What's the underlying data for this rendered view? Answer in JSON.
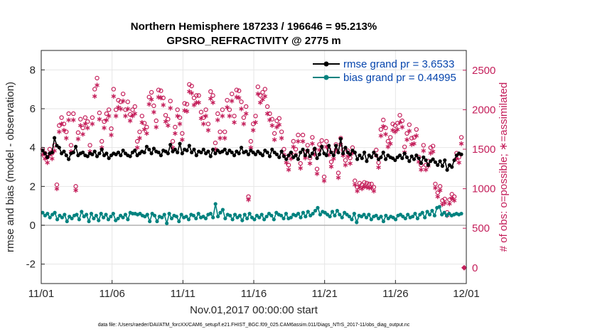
{
  "chart_data": {
    "type": "line",
    "title": "Northern Hemisphere 187233 / 196646 = 95.213%",
    "subtitle": "GPSRO_REFRACTIVITY @ 2775 m",
    "xlabel": "Nov.01,2017 00:00:00 start",
    "ylabel_left": "rmse and bias (model - observation)",
    "ylabel_right": "# of obs: o=possible; ∗=assimilated",
    "footnote": "data file: /Users/raeder/DAI/ATM_forcXX/CAM6_setup/f.e21.FHIST_BGC.f09_025.CAM6assim.011/Diags_NTrS_2017-11/obs_diag_output.nc",
    "x_ticks": [
      "11/01",
      "11/06",
      "11/11",
      "11/16",
      "11/21",
      "11/26",
      "12/01"
    ],
    "x_tick_days": [
      0,
      5,
      10,
      15,
      20,
      25,
      30
    ],
    "xlim": [
      0,
      30
    ],
    "ylim_left": [
      -3,
      9
    ],
    "y_ticks_left": [
      "-2",
      "0",
      "2",
      "4",
      "6",
      "8"
    ],
    "y_tick_values_left": [
      -2,
      0,
      2,
      4,
      6,
      8
    ],
    "ylim_right": [
      -200,
      2750
    ],
    "y_ticks_right": [
      "0",
      "500",
      "1000",
      "1500",
      "2000",
      "2500"
    ],
    "y_tick_values_right": [
      0,
      500,
      1000,
      1500,
      2000,
      2500
    ],
    "grid": true,
    "legend_position": "top-right",
    "series": [
      {
        "name": "rmse grand pr = 3.6533",
        "axis": "left",
        "color": "#000000",
        "values": [
          3.85,
          3.7,
          3.5,
          3.7,
          3.75,
          4.5,
          4.1,
          4.0,
          3.7,
          3.8,
          3.6,
          3.4,
          3.7,
          3.75,
          4.05,
          3.6,
          3.7,
          3.75,
          3.6,
          3.55,
          3.7,
          3.65,
          3.8,
          3.55,
          3.7,
          3.9,
          3.6,
          3.7,
          3.45,
          3.6,
          3.7,
          3.65,
          3.75,
          3.6,
          3.85,
          3.7,
          3.6,
          3.55,
          3.75,
          3.85,
          3.6,
          3.7,
          3.8,
          3.75,
          4.05,
          3.9,
          3.7,
          3.95,
          3.8,
          3.75,
          3.6,
          3.85,
          3.8,
          3.7,
          4.15,
          3.8,
          3.9,
          3.75,
          4.2,
          3.7,
          3.9,
          3.85,
          4.1,
          3.75,
          3.9,
          3.6,
          3.8,
          3.75,
          3.9,
          3.7,
          3.8,
          3.55,
          3.9,
          3.7,
          3.85,
          3.75,
          3.8,
          3.9,
          3.7,
          3.85,
          3.75,
          3.6,
          3.8,
          3.7,
          4.0,
          3.75,
          3.8,
          3.65,
          3.85,
          3.75,
          3.65,
          3.8,
          3.7,
          3.6,
          3.85,
          3.75,
          3.55,
          3.9,
          3.75,
          3.65,
          3.5,
          3.8,
          3.55,
          3.4,
          3.6,
          3.75,
          3.5,
          3.6,
          3.4,
          3.75,
          3.9,
          3.6,
          3.85,
          3.55,
          3.7,
          3.95,
          3.45,
          3.65,
          4.05,
          3.7,
          3.6,
          4.1,
          3.75,
          3.6,
          4.1,
          3.75,
          4.45,
          3.7,
          4.0,
          3.75,
          3.65,
          3.85,
          3.75,
          3.4,
          3.6,
          3.45,
          3.75,
          3.3,
          3.6,
          3.5,
          3.75,
          3.6,
          3.4,
          3.5,
          3.75,
          3.4,
          3.6,
          3.5,
          3.45,
          3.35,
          3.5,
          3.6,
          3.45,
          3.7,
          3.5,
          3.3,
          3.55,
          3.4,
          3.6,
          3.45,
          3.2,
          3.5,
          3.35,
          3.1,
          3.3,
          3.4,
          3.25,
          3.1,
          3.3,
          3.05,
          3.35,
          2.85,
          3.1,
          3.0,
          3.35,
          3.6,
          3.7,
          3.65
        ]
      },
      {
        "name": "bias grand pr = 0.44995",
        "axis": "left",
        "color": "#00827f",
        "values": [
          0.65,
          0.5,
          0.6,
          0.4,
          0.55,
          0.65,
          0.3,
          0.5,
          0.4,
          0.55,
          0.2,
          0.45,
          0.35,
          0.5,
          0.55,
          0.3,
          0.7,
          0.45,
          0.55,
          0.2,
          0.6,
          0.35,
          0.5,
          0.25,
          0.6,
          0.4,
          0.55,
          0.3,
          0.45,
          0.6,
          0.25,
          0.35,
          0.5,
          0.4,
          0.55,
          0.3,
          0.65,
          0.6,
          0.6,
          0.55,
          0.6,
          0.5,
          0.45,
          0.55,
          0.2,
          0.6,
          0.5,
          0.2,
          0.45,
          0.4,
          0.55,
          0.1,
          0.6,
          0.35,
          0.5,
          0.45,
          0.2,
          0.55,
          0.4,
          0.45,
          0.3,
          0.55,
          0.5,
          0.35,
          0.6,
          0.4,
          0.45,
          0.35,
          0.55,
          0.6,
          0.4,
          1.1,
          0.45,
          0.65,
          0.8,
          0.35,
          0.55,
          0.5,
          0.3,
          0.55,
          0.4,
          0.5,
          0.25,
          0.55,
          0.35,
          0.6,
          0.4,
          0.3,
          0.5,
          0.4,
          0.55,
          0.3,
          0.45,
          0.6,
          0.5,
          0.3,
          0.65,
          0.55,
          0.5,
          0.35,
          0.6,
          0.35,
          0.4,
          0.55,
          0.5,
          0.6,
          0.4,
          0.65,
          0.45,
          0.7,
          0.5,
          0.6,
          0.75,
          0.9,
          0.55,
          0.7,
          0.65,
          0.55,
          0.45,
          0.7,
          0.5,
          0.75,
          0.55,
          0.4,
          0.65,
          0.55,
          0.45,
          0.3,
          0.6,
          0.15,
          0.5,
          0.45,
          0.55,
          0.4,
          0.55,
          0.3,
          0.45,
          0.5,
          0.35,
          0.45,
          0.2,
          0.5,
          0.35,
          0.45,
          0.4,
          0.3,
          0.5,
          0.55,
          0.45,
          0.35,
          0.55,
          0.4,
          0.45,
          0.6,
          0.35,
          0.55,
          0.65,
          0.4,
          0.7,
          0.55,
          0.75,
          0.5,
          0.9,
          0.95,
          0.55,
          0.65,
          0.5,
          0.6,
          0.5,
          0.55,
          0.6,
          0.55,
          0.6
        ]
      },
      {
        "name": "possible",
        "axis": "right",
        "color": "#c41e5a",
        "marker": "o",
        "values": [
          1500,
          1450,
          1400,
          1500,
          1450,
          1550,
          1050,
          1800,
          1900,
          1820,
          1720,
          1950,
          1550,
          1950,
          1030,
          1710,
          1880,
          1770,
          1900,
          1850,
          1550,
          1900,
          2260,
          2400,
          1960,
          1600,
          1850,
          1950,
          2000,
          1760,
          2260,
          2000,
          2120,
          2100,
          2200,
          2000,
          2100,
          1940,
          2000,
          2040,
          1600,
          1720,
          1920,
          1830,
          1780,
          2160,
          2220,
          2050,
          1860,
          2250,
          2240,
          2150,
          1930,
          1880,
          2110,
          1600,
          1780,
          2000,
          1900,
          1700,
          2080,
          2070,
          2320,
          2300,
          2150,
          2180,
          2180,
          1970,
          1900,
          2000,
          1820,
          2230,
          2180,
          1580,
          1950,
          1720,
          2000,
          1720,
          2120,
          2000,
          2200,
          1920,
          2250,
          2240,
          2100,
          1900,
          2040,
          900,
          1600,
          1820,
          1920,
          2290,
          2180,
          2220,
          2260,
          2040,
          1950,
          1880,
          1700,
          1860,
          1890,
          1720,
          1500,
          1400,
          1300,
          1450,
          1600,
          1500,
          1680,
          1320,
          1680,
          1460,
          1550,
          1390,
          1650,
          1500,
          1250,
          1560,
          1610,
          1150,
          1600,
          1500,
          1340,
          1450,
          1560,
          1200,
          1640,
          1490,
          1360,
          1480,
          1390,
          1520,
          1100,
          1020,
          1070,
          1050,
          1080,
          1070,
          1060,
          1060,
          1020,
          1490,
          1330,
          1750,
          1870,
          1770,
          1600,
          1650,
          1820,
          1800,
          1830,
          1930,
          1860,
          1530,
          1700,
          1810,
          1640,
          1650,
          1750,
          1400,
          1300,
          1550,
          1300,
          1350,
          1520,
          1540,
          1060,
          950,
          1030,
          850,
          870,
          700,
          860,
          930,
          900,
          1450,
          1400,
          1650
        ]
      },
      {
        "name": "assimilated",
        "axis": "right",
        "color": "#c41e5a",
        "marker": "*",
        "values": [
          1430,
          1380,
          1330,
          1430,
          1380,
          1480,
          1000,
          1720,
          1820,
          1740,
          1640,
          1870,
          1470,
          1870,
          980,
          1630,
          1800,
          1690,
          1820,
          1770,
          1470,
          1820,
          2170,
          2310,
          1880,
          1520,
          1770,
          1870,
          1920,
          1680,
          2170,
          1920,
          2030,
          2010,
          2110,
          1920,
          2010,
          1860,
          1920,
          1950,
          1520,
          1640,
          1840,
          1750,
          1700,
          2070,
          2130,
          1970,
          1780,
          2160,
          2150,
          2060,
          1850,
          1800,
          2020,
          1520,
          1700,
          1920,
          1820,
          1620,
          1990,
          1980,
          2230,
          2210,
          2060,
          2090,
          2090,
          1890,
          1820,
          1920,
          1740,
          2140,
          2090,
          1500,
          1870,
          1640,
          1920,
          1640,
          2030,
          1920,
          2110,
          1840,
          2160,
          2150,
          2010,
          1820,
          1950,
          860,
          1520,
          1740,
          1840,
          2200,
          2090,
          2130,
          2170,
          1950,
          1870,
          1800,
          1620,
          1780,
          1810,
          1640,
          1430,
          1330,
          1240,
          1380,
          1530,
          1430,
          1600,
          1260,
          1600,
          1390,
          1480,
          1320,
          1570,
          1430,
          1190,
          1490,
          1530,
          1100,
          1530,
          1430,
          1280,
          1380,
          1490,
          1140,
          1560,
          1420,
          1300,
          1410,
          1320,
          1450,
          1050,
          970,
          1020,
          1000,
          1030,
          1020,
          1010,
          1010,
          970,
          1420,
          1270,
          1670,
          1790,
          1690,
          1530,
          1570,
          1740,
          1720,
          1750,
          1840,
          1780,
          1460,
          1620,
          1730,
          1560,
          1570,
          1670,
          1340,
          1240,
          1480,
          1240,
          1290,
          1450,
          1470,
          1010,
          900,
          980,
          800,
          820,
          660,
          810,
          880,
          850,
          1380,
          1330,
          1570
        ]
      }
    ],
    "right_axis_marker_at_zero": "0"
  }
}
